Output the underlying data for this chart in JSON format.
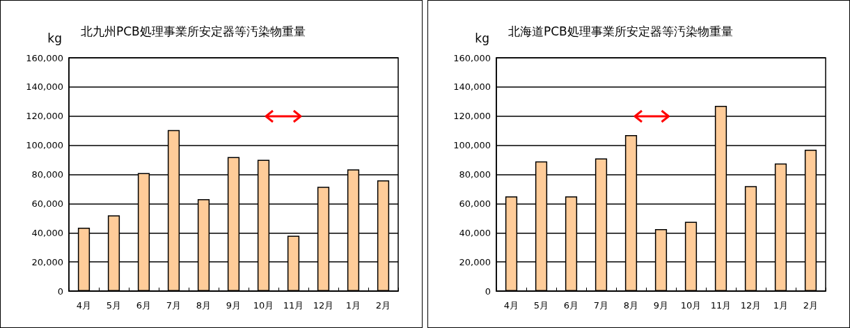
{
  "chart_data": [
    {
      "type": "bar",
      "title": "北九州PCB処理事業所安定器等汚染物重量",
      "ylabel": "kg",
      "categories": [
        "4月",
        "5月",
        "6月",
        "7月",
        "8月",
        "9月",
        "10月",
        "11月",
        "12月",
        "1月",
        "2月"
      ],
      "values": [
        43500,
        52000,
        81000,
        110500,
        63000,
        92000,
        90000,
        38000,
        71500,
        83500,
        76000
      ],
      "color": "#ffcc99",
      "ylim": [
        0,
        160000
      ],
      "yticks": [
        {
          "value": 0,
          "label": "0"
        },
        {
          "value": 20000,
          "label": "20,000"
        },
        {
          "value": 40000,
          "label": "40,000"
        },
        {
          "value": 60000,
          "label": "60,000"
        },
        {
          "value": 80000,
          "label": "80,000"
        },
        {
          "value": 100000,
          "label": "100,000"
        },
        {
          "value": 120000,
          "label": "120,000"
        },
        {
          "value": 140000,
          "label": "140,000"
        },
        {
          "value": 160000,
          "label": "160,000"
        }
      ],
      "grid": "y"
    },
    {
      "type": "bar",
      "title": "北海道PCB処理事業所安定器等汚染物重量",
      "ylabel": "kg",
      "categories": [
        "4月",
        "5月",
        "6月",
        "7月",
        "8月",
        "9月",
        "10月",
        "11月",
        "12月",
        "1月",
        "2月"
      ],
      "values": [
        65000,
        89000,
        65000,
        91000,
        107000,
        42500,
        47500,
        127000,
        72000,
        87500,
        97000
      ],
      "color": "#ffcc99",
      "ylim": [
        0,
        160000
      ],
      "yticks": [
        {
          "value": 0,
          "label": "0"
        },
        {
          "value": 20000,
          "label": "20,000"
        },
        {
          "value": 40000,
          "label": "40,000"
        },
        {
          "value": 60000,
          "label": "60,000"
        },
        {
          "value": 80000,
          "label": "80,000"
        },
        {
          "value": 100000,
          "label": "100,000"
        },
        {
          "value": 120000,
          "label": "120,000"
        },
        {
          "value": 140000,
          "label": "140,000"
        },
        {
          "value": 160000,
          "label": "160,000"
        }
      ],
      "grid": "y"
    }
  ]
}
